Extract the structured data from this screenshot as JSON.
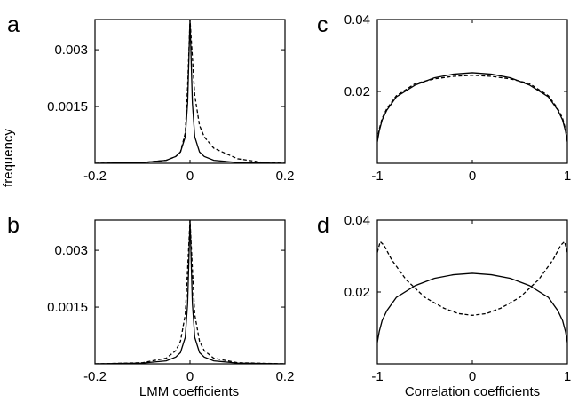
{
  "figure": {
    "shared_ylabel": "frequency",
    "xlabel_left": "LMM coefficients",
    "xlabel_right": "Correlation coefficients"
  },
  "chart_data": [
    {
      "panel": "a",
      "type": "line",
      "xlim": [
        -0.2,
        0.2
      ],
      "ylim": [
        0,
        0.0038
      ],
      "xticks": [
        -0.2,
        0,
        0.2
      ],
      "xtick_labels": [
        "-0.2",
        "0",
        "0.2"
      ],
      "yticks": [
        0.0015,
        0.003
      ],
      "ytick_labels": [
        "0.0015",
        "0.003"
      ],
      "series": [
        {
          "style": "solid",
          "x": [
            -0.2,
            -0.1,
            -0.05,
            -0.03,
            -0.02,
            -0.01,
            -0.005,
            0,
            0.005,
            0.01,
            0.02,
            0.03,
            0.05,
            0.1,
            0.2
          ],
          "y": [
            0.0,
            2e-05,
            8e-05,
            0.00018,
            0.0003,
            0.0007,
            0.0016,
            0.0038,
            0.0016,
            0.0007,
            0.0003,
            0.00018,
            8e-05,
            2e-05,
            0.0
          ]
        },
        {
          "style": "dashed",
          "x": [
            -0.2,
            -0.1,
            -0.05,
            -0.03,
            -0.02,
            -0.01,
            -0.005,
            0,
            0.005,
            0.01,
            0.02,
            0.03,
            0.05,
            0.1,
            0.15,
            0.2
          ],
          "y": [
            0.0,
            2e-05,
            8e-05,
            0.00018,
            0.0003,
            0.0008,
            0.002,
            0.0038,
            0.0028,
            0.0018,
            0.001,
            0.0007,
            0.0004,
            0.00012,
            3e-05,
            0.0
          ]
        }
      ]
    },
    {
      "panel": "b",
      "type": "line",
      "xlim": [
        -0.2,
        0.2
      ],
      "ylim": [
        0,
        0.0038
      ],
      "xticks": [
        -0.2,
        0,
        0.2
      ],
      "xtick_labels": [
        "-0.2",
        "0",
        "0.2"
      ],
      "yticks": [
        0.0015,
        0.003
      ],
      "ytick_labels": [
        "0.0015",
        "0.003"
      ],
      "series": [
        {
          "style": "solid",
          "x": [
            -0.2,
            -0.1,
            -0.05,
            -0.03,
            -0.02,
            -0.01,
            -0.005,
            0,
            0.005,
            0.01,
            0.02,
            0.03,
            0.05,
            0.1,
            0.2
          ],
          "y": [
            0.0,
            2e-05,
            8e-05,
            0.00018,
            0.0003,
            0.0007,
            0.0016,
            0.0038,
            0.0016,
            0.0007,
            0.0003,
            0.00018,
            8e-05,
            2e-05,
            0.0
          ]
        },
        {
          "style": "dashed",
          "x": [
            -0.2,
            -0.1,
            -0.05,
            -0.03,
            -0.02,
            -0.01,
            -0.005,
            0,
            0.005,
            0.01,
            0.02,
            0.03,
            0.05,
            0.1,
            0.2
          ],
          "y": [
            0.0,
            3e-05,
            0.00015,
            0.00035,
            0.0006,
            0.0013,
            0.0025,
            0.0038,
            0.0025,
            0.0013,
            0.0006,
            0.00035,
            0.00015,
            3e-05,
            0.0
          ]
        }
      ]
    },
    {
      "panel": "c",
      "type": "line",
      "xlim": [
        -1,
        1
      ],
      "ylim": [
        0,
        0.04
      ],
      "xticks": [
        -1,
        0,
        1
      ],
      "xtick_labels": [
        "-1",
        "0",
        "1"
      ],
      "yticks": [
        0.02,
        0.04
      ],
      "ytick_labels": [
        "0.02",
        "0.04"
      ],
      "series": [
        {
          "style": "solid",
          "x": [
            -1,
            -0.98,
            -0.95,
            -0.9,
            -0.8,
            -0.6,
            -0.4,
            -0.2,
            0,
            0.2,
            0.4,
            0.6,
            0.8,
            0.9,
            0.95,
            0.98,
            1
          ],
          "y": [
            0.006,
            0.009,
            0.012,
            0.0148,
            0.0185,
            0.0218,
            0.0238,
            0.0248,
            0.0252,
            0.0248,
            0.0238,
            0.0218,
            0.0185,
            0.0148,
            0.012,
            0.009,
            0.006
          ]
        },
        {
          "style": "dashed",
          "x": [
            -1,
            -0.98,
            -0.95,
            -0.9,
            -0.8,
            -0.6,
            -0.4,
            -0.2,
            0,
            0.2,
            0.4,
            0.6,
            0.8,
            0.9,
            0.95,
            0.98,
            1
          ],
          "y": [
            0.0065,
            0.0095,
            0.0125,
            0.0152,
            0.0188,
            0.0222,
            0.0235,
            0.0242,
            0.0245,
            0.0242,
            0.0235,
            0.0222,
            0.0188,
            0.0152,
            0.0125,
            0.0095,
            0.0065
          ]
        }
      ]
    },
    {
      "panel": "d",
      "type": "line",
      "xlim": [
        -1,
        1
      ],
      "ylim": [
        0,
        0.04
      ],
      "xticks": [
        -1,
        0,
        1
      ],
      "xtick_labels": [
        "-1",
        "0",
        "1"
      ],
      "yticks": [
        0.02,
        0.04
      ],
      "ytick_labels": [
        "0.02",
        "0.04"
      ],
      "series": [
        {
          "style": "solid",
          "x": [
            -1,
            -0.98,
            -0.95,
            -0.9,
            -0.8,
            -0.6,
            -0.4,
            -0.2,
            0,
            0.2,
            0.4,
            0.6,
            0.8,
            0.9,
            0.95,
            0.98,
            1
          ],
          "y": [
            0.006,
            0.009,
            0.012,
            0.0148,
            0.0185,
            0.0218,
            0.0238,
            0.0248,
            0.0252,
            0.0248,
            0.0238,
            0.0218,
            0.0185,
            0.0148,
            0.012,
            0.009,
            0.006
          ]
        },
        {
          "style": "dashed",
          "x": [
            -1,
            -0.97,
            -0.93,
            -0.85,
            -0.7,
            -0.5,
            -0.3,
            -0.15,
            0,
            0.15,
            0.3,
            0.5,
            0.7,
            0.85,
            0.93,
            0.97,
            1
          ],
          "y": [
            0.031,
            0.034,
            0.033,
            0.029,
            0.0235,
            0.0185,
            0.0155,
            0.014,
            0.0135,
            0.014,
            0.0155,
            0.0185,
            0.0235,
            0.029,
            0.033,
            0.034,
            0.031
          ]
        }
      ]
    }
  ]
}
